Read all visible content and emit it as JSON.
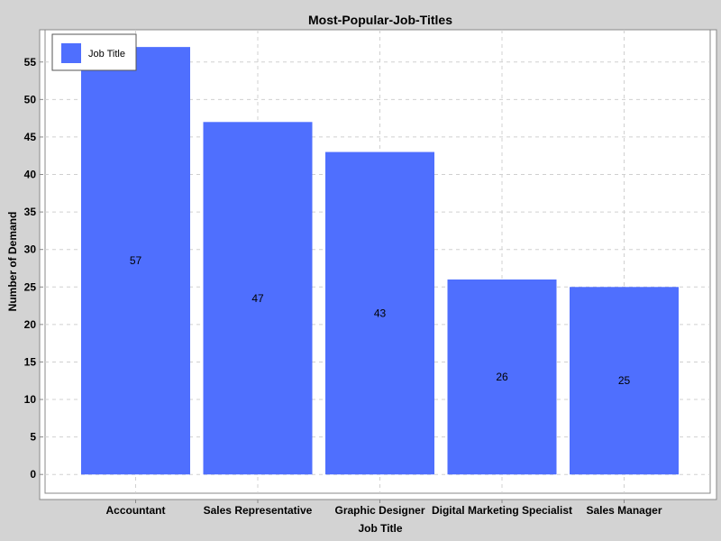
{
  "chart_data": {
    "type": "bar",
    "title": "Most-Popular-Job-Titles",
    "xlabel": "Job Title",
    "ylabel": "Number of Demand",
    "categories": [
      "Accountant",
      "Sales Representative",
      "Graphic Designer",
      "Digital Marketing Specialist",
      "Sales Manager"
    ],
    "series": [
      {
        "name": "Job Title",
        "values": [
          57,
          47,
          43,
          26,
          25
        ],
        "color": "#4f6ffe"
      }
    ],
    "ylim": [
      -2.5,
      59.3
    ],
    "yticks": [
      0,
      5,
      10,
      15,
      20,
      25,
      30,
      35,
      40,
      45,
      50,
      55
    ],
    "data_labels": [
      "57",
      "47",
      "43",
      "26",
      "25"
    ],
    "grid": true,
    "legend_position": "top-left"
  }
}
